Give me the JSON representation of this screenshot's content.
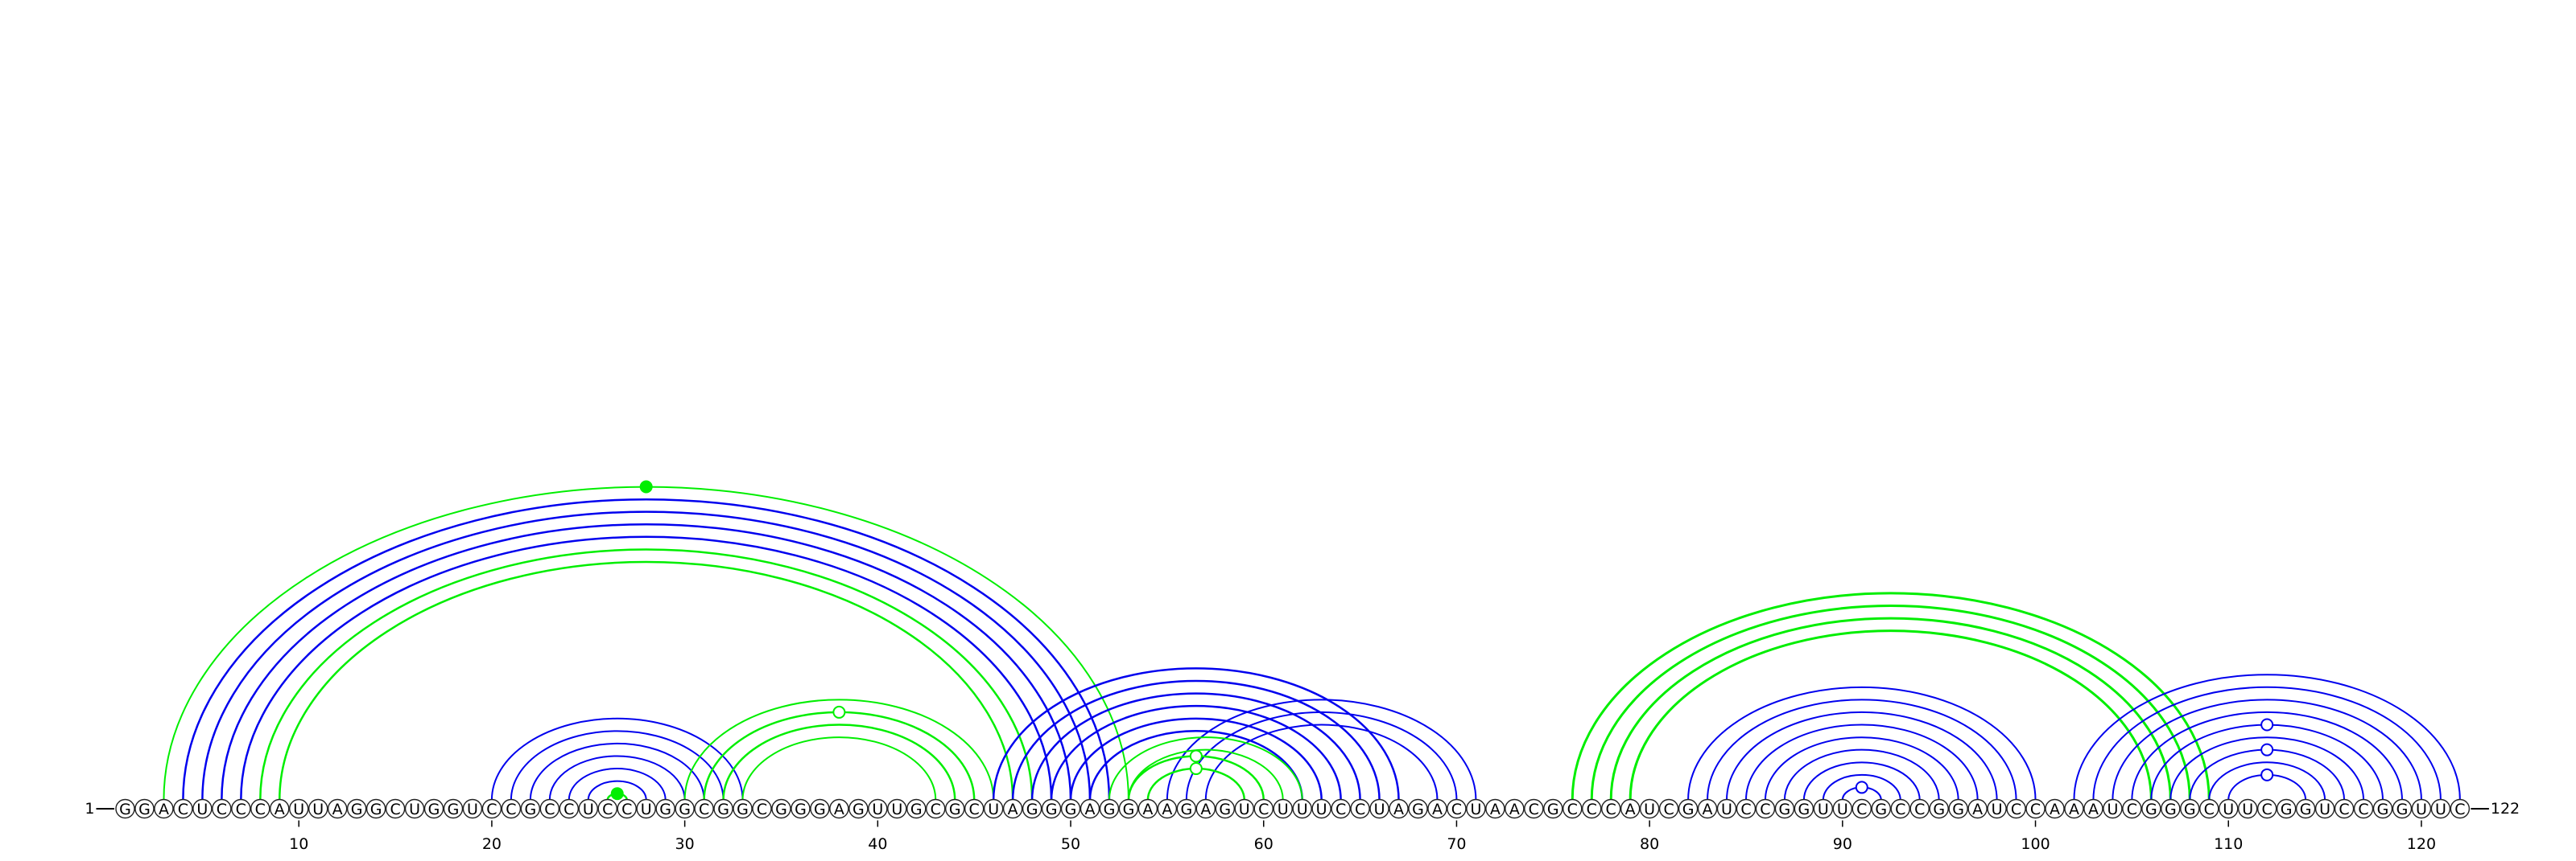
{
  "chart_data": {
    "type": "arc-diagram",
    "sequence": "GGACUCCCAUUAGGCUGGUCCGCCUCCUGGCGGCGGGAGUUGCGCUAGGGAGGAAGAGUCUUUCCUAGACUAACGCCCAUCGAUCCGGUUCGCCGGAUCCAAAUCGGGCUUCGGUCCGGUUC",
    "start_label": "1",
    "end_label": "122",
    "ticks": [
      10,
      20,
      30,
      40,
      50,
      60,
      70,
      80,
      90,
      100,
      110,
      120
    ],
    "colors": {
      "blue": "#0000ee",
      "green": "#00ee00",
      "outline": "#222222"
    },
    "helices": [
      {
        "color": "blue",
        "weight": 2.5,
        "pairs": [
          [
            4,
            52
          ],
          [
            5,
            51
          ],
          [
            6,
            50
          ],
          [
            7,
            49
          ]
        ]
      },
      {
        "color": "green",
        "weight": 2.5,
        "pairs": [
          [
            8,
            48
          ],
          [
            9,
            47
          ]
        ]
      },
      {
        "color": "green",
        "weight": 2,
        "pairs": [
          [
            3,
            53
          ]
        ]
      },
      {
        "color": "blue",
        "weight": 2,
        "pairs": [
          [
            21,
            32
          ],
          [
            22,
            31
          ],
          [
            23,
            30
          ],
          [
            24,
            29
          ],
          [
            25,
            28
          ]
        ]
      },
      {
        "color": "blue",
        "weight": 2,
        "pairs": [
          [
            20,
            33
          ]
        ]
      },
      {
        "color": "green",
        "weight": 2.5,
        "pairs": [
          [
            26,
            27
          ]
        ]
      },
      {
        "color": "green",
        "weight": 2.5,
        "pairs": [
          [
            31,
            45
          ],
          [
            32,
            44
          ]
        ]
      },
      {
        "color": "green",
        "weight": 2,
        "pairs": [
          [
            30,
            46
          ],
          [
            33,
            43
          ]
        ]
      },
      {
        "color": "blue",
        "weight": 2.5,
        "pairs": [
          [
            46,
            67
          ],
          [
            47,
            66
          ],
          [
            48,
            65
          ],
          [
            49,
            64
          ],
          [
            50,
            63
          ],
          [
            51,
            62
          ]
        ]
      },
      {
        "color": "blue",
        "weight": 2,
        "pairs": [
          [
            55,
            71
          ],
          [
            56,
            70
          ],
          [
            57,
            69
          ]
        ]
      },
      {
        "color": "green",
        "weight": 2.5,
        "pairs": [
          [
            53,
            60
          ],
          [
            54,
            59
          ]
        ]
      },
      {
        "color": "green",
        "weight": 2,
        "pairs": [
          [
            52,
            62
          ],
          [
            53,
            61
          ]
        ]
      },
      {
        "color": "green",
        "weight": 3,
        "pairs": [
          [
            76,
            109
          ],
          [
            77,
            108
          ],
          [
            78,
            107
          ],
          [
            79,
            106
          ]
        ]
      },
      {
        "color": "blue",
        "weight": 2,
        "pairs": [
          [
            82,
            100
          ],
          [
            83,
            99
          ],
          [
            84,
            98
          ],
          [
            85,
            97
          ],
          [
            86,
            96
          ],
          [
            87,
            95
          ],
          [
            88,
            94
          ],
          [
            89,
            93
          ],
          [
            90,
            92
          ]
        ]
      },
      {
        "color": "blue",
        "weight": 2,
        "pairs": [
          [
            103,
            121
          ],
          [
            104,
            120
          ],
          [
            105,
            119
          ],
          [
            106,
            118
          ],
          [
            107,
            117
          ],
          [
            108,
            116
          ],
          [
            109,
            115
          ],
          [
            110,
            114
          ]
        ]
      },
      {
        "color": "blue",
        "weight": 2,
        "pairs": [
          [
            102,
            122
          ]
        ]
      }
    ],
    "markers": [
      {
        "between": [
          3,
          53
        ],
        "color": "green",
        "filled": true
      },
      {
        "between": [
          26,
          27
        ],
        "color": "green",
        "filled": true
      },
      {
        "between": [
          31,
          45
        ],
        "color": "green",
        "filled": false
      },
      {
        "between": [
          53,
          60
        ],
        "color": "green",
        "filled": false
      },
      {
        "between": [
          54,
          59
        ],
        "color": "green",
        "filled": false
      },
      {
        "between": [
          90,
          92
        ],
        "color": "blue",
        "filled": false
      },
      {
        "between": [
          110,
          114
        ],
        "color": "blue",
        "filled": false
      },
      {
        "between": [
          108,
          116
        ],
        "color": "blue",
        "filled": false
      },
      {
        "between": [
          106,
          118
        ],
        "color": "blue",
        "filled": false
      }
    ]
  }
}
